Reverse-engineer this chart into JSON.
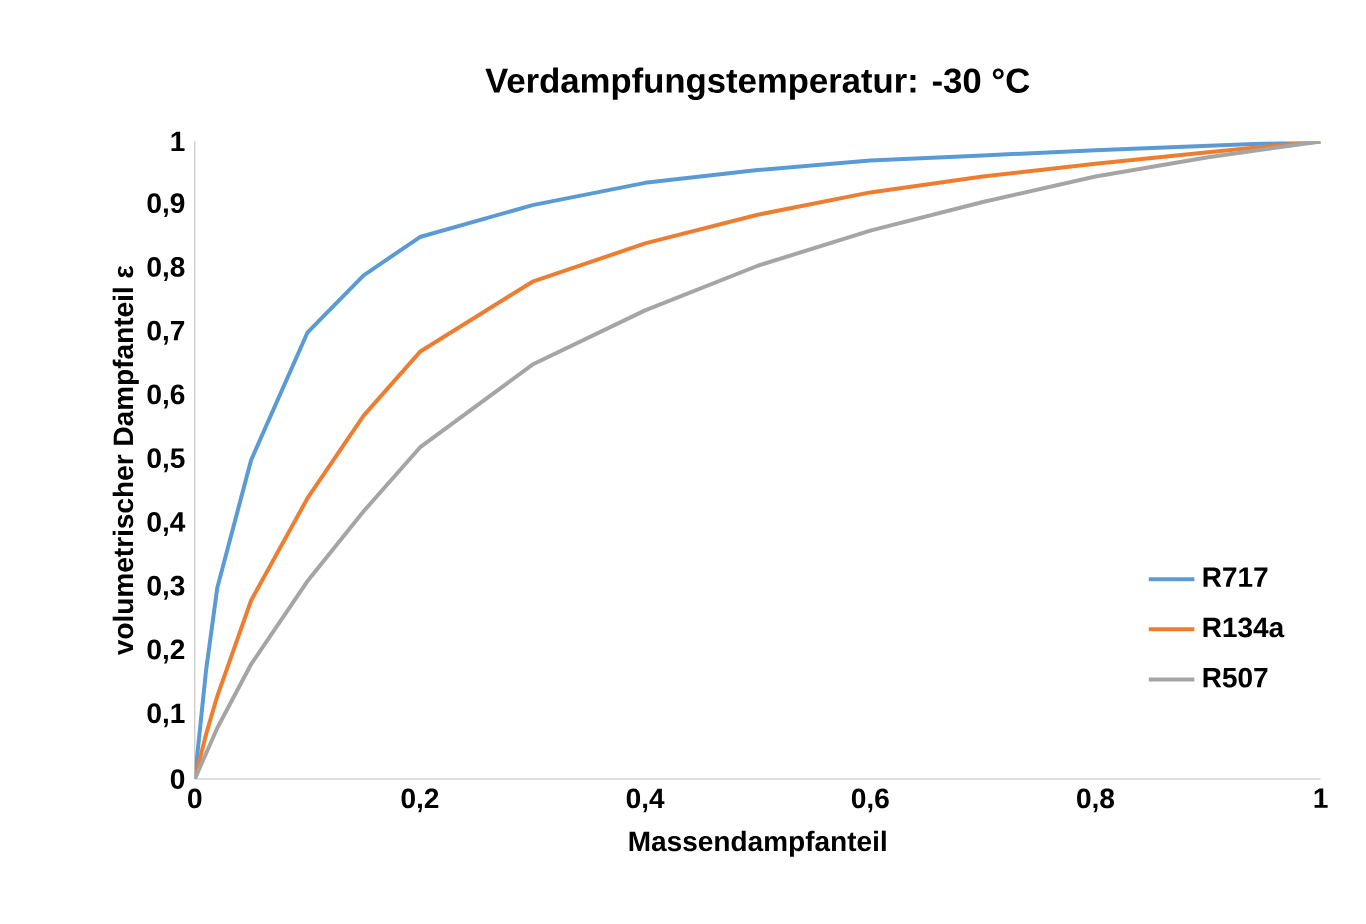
{
  "chart_data": {
    "type": "line",
    "title": "Verdampfungstemperatur: -30 °C",
    "xlabel": "Massendampfanteil",
    "ylabel": "volumetrischer Dampfanteil ε",
    "x": [
      0,
      0.01,
      0.02,
      0.05,
      0.1,
      0.15,
      0.2,
      0.3,
      0.4,
      0.5,
      0.6,
      0.7,
      0.8,
      0.9,
      1
    ],
    "series": [
      {
        "name": "R717",
        "color": "#5b9bd5",
        "values": [
          0,
          0.17,
          0.3,
          0.5,
          0.7,
          0.79,
          0.85,
          0.9,
          0.935,
          0.955,
          0.97,
          0.978,
          0.986,
          0.993,
          1
        ]
      },
      {
        "name": "R134a",
        "color": "#ed7d31",
        "values": [
          0,
          0.07,
          0.13,
          0.28,
          0.44,
          0.57,
          0.67,
          0.78,
          0.84,
          0.885,
          0.92,
          0.945,
          0.965,
          0.983,
          1
        ]
      },
      {
        "name": "R507",
        "color": "#a5a5a5",
        "values": [
          0,
          0.04,
          0.08,
          0.18,
          0.31,
          0.42,
          0.52,
          0.65,
          0.735,
          0.805,
          0.86,
          0.905,
          0.945,
          0.975,
          1
        ]
      }
    ],
    "xlim": [
      0,
      1
    ],
    "xticks": [
      0,
      {
        "value": 0.2,
        "label": "0,2"
      },
      {
        "value": 0.4,
        "label": "0,4"
      },
      {
        "value": 0.6,
        "label": "0,6"
      },
      {
        "value": 0.8,
        "label": "0,8"
      },
      1
    ],
    "ylim": [
      0,
      1
    ],
    "yticks": [
      0,
      {
        "value": 0.1,
        "label": "0,1"
      },
      {
        "value": 0.2,
        "label": "0,2"
      },
      {
        "value": 0.3,
        "label": "0,3"
      },
      {
        "value": 0.4,
        "label": "0,4"
      },
      {
        "value": 0.5,
        "label": "0,5"
      },
      {
        "value": 0.6,
        "label": "0,6"
      },
      {
        "value": 0.7,
        "label": "0,7"
      },
      {
        "value": 0.8,
        "label": "0,8"
      },
      {
        "value": 0.9,
        "label": "0,9"
      },
      1
    ],
    "legend": "right",
    "marker": "none",
    "line_style": "solid",
    "grid": false
  }
}
